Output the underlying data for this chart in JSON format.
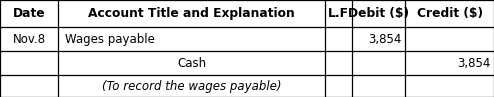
{
  "col_headers": [
    "Date",
    "Account Title and Explanation",
    "L.F",
    "Debit ($)",
    "Credit ($)"
  ],
  "col_boundaries": [
    0.0,
    0.118,
    0.658,
    0.713,
    0.82,
    1.0
  ],
  "row_boundaries": [
    1.0,
    0.72,
    0.47,
    0.225,
    0.0
  ],
  "rows": [
    {
      "date": "Nov.8",
      "account": "Wages payable",
      "account_indent": 0.005,
      "account_align": "left",
      "lf": "",
      "debit": "3,854",
      "credit": "",
      "italic": false
    },
    {
      "date": "",
      "account": "Cash",
      "account_indent": 0.0,
      "account_align": "center",
      "lf": "",
      "debit": "",
      "credit": "3,854",
      "italic": false
    },
    {
      "date": "",
      "account": "(To record the wages payable)",
      "account_indent": 0.0,
      "account_align": "center",
      "lf": "",
      "debit": "",
      "credit": "",
      "italic": true
    }
  ],
  "background_color": "#ffffff",
  "border_color": "#000000",
  "header_fontsize": 8.8,
  "body_fontsize": 8.5,
  "line_width": 0.9
}
